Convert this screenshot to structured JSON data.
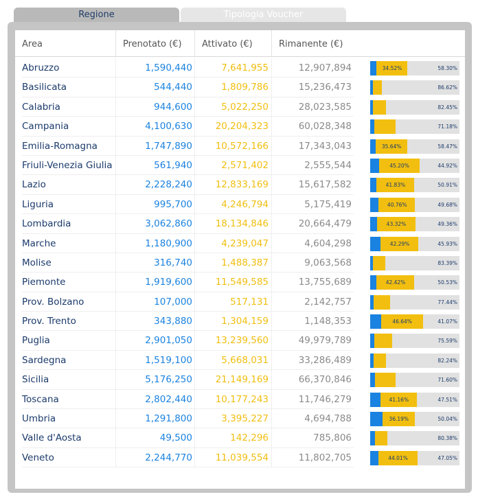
{
  "tabs": [
    {
      "label": "Regione",
      "active": true
    },
    {
      "label": "Tipologia Voucher",
      "active": false
    }
  ],
  "columns": {
    "area": "Area",
    "prenotato": "Prenotato (€)",
    "attivato": "Attivato (€)",
    "rimanente": "Rimanente (€)"
  },
  "colors": {
    "prenotato": "#1a82e0",
    "attivato": "#f2bf10",
    "rimanente": "#e1e1e1"
  },
  "rows": [
    {
      "area": "Abruzzo",
      "prenotato": "1,590,440",
      "attivato": "7,641,955",
      "rimanente": "12,907,894",
      "pren_pct": 7.1,
      "att_pct": 34.52,
      "att_label": "34.52%",
      "rim_pct": 58.3,
      "rim_label": "58.30%"
    },
    {
      "area": "Basilicata",
      "prenotato": "544,440",
      "attivato": "1,809,786",
      "rimanente": "15,236,473",
      "pren_pct": 3.1,
      "att_pct": 10.28,
      "att_label": "",
      "rim_pct": 86.62,
      "rim_label": "86.62%"
    },
    {
      "area": "Calabria",
      "prenotato": "944,600",
      "attivato": "5,022,250",
      "rimanente": "28,023,585",
      "pren_pct": 2.78,
      "att_pct": 14.77,
      "att_label": "",
      "rim_pct": 82.45,
      "rim_label": "82.45%"
    },
    {
      "area": "Campania",
      "prenotato": "4,100,630",
      "attivato": "20,204,323",
      "rimanente": "60,028,348",
      "pren_pct": 4.86,
      "att_pct": 23.96,
      "att_label": "",
      "rim_pct": 71.18,
      "rim_label": "71.18%"
    },
    {
      "area": "Emilia-Romagna",
      "prenotato": "1,747,890",
      "attivato": "10,572,166",
      "rimanente": "17,343,043",
      "pren_pct": 5.89,
      "att_pct": 35.64,
      "att_label": "35.64%",
      "rim_pct": 58.47,
      "rim_label": "58.47%"
    },
    {
      "area": "Friuli-Venezia Giulia",
      "prenotato": "561,940",
      "attivato": "2,571,402",
      "rimanente": "2,555,544",
      "pren_pct": 9.88,
      "att_pct": 45.2,
      "att_label": "45.20%",
      "rim_pct": 44.92,
      "rim_label": "44.92%"
    },
    {
      "area": "Lazio",
      "prenotato": "2,228,240",
      "attivato": "12,833,169",
      "rimanente": "15,617,582",
      "pren_pct": 7.26,
      "att_pct": 41.83,
      "att_label": "41.83%",
      "rim_pct": 50.91,
      "rim_label": "50.91%"
    },
    {
      "area": "Liguria",
      "prenotato": "995,700",
      "attivato": "4,246,794",
      "rimanente": "5,175,419",
      "pren_pct": 9.56,
      "att_pct": 40.76,
      "att_label": "40.76%",
      "rim_pct": 49.68,
      "rim_label": "49.68%"
    },
    {
      "area": "Lombardia",
      "prenotato": "3,062,860",
      "attivato": "18,134,846",
      "rimanente": "20,664,479",
      "pren_pct": 7.32,
      "att_pct": 43.32,
      "att_label": "43.32%",
      "rim_pct": 49.36,
      "rim_label": "49.36%"
    },
    {
      "area": "Marche",
      "prenotato": "1,180,900",
      "attivato": "4,239,047",
      "rimanente": "4,604,298",
      "pren_pct": 11.78,
      "att_pct": 42.29,
      "att_label": "42.29%",
      "rim_pct": 45.93,
      "rim_label": "45.93%"
    },
    {
      "area": "Molise",
      "prenotato": "316,740",
      "attivato": "1,488,387",
      "rimanente": "9,063,568",
      "pren_pct": 2.91,
      "att_pct": 13.7,
      "att_label": "",
      "rim_pct": 83.39,
      "rim_label": "83.39%"
    },
    {
      "area": "Piemonte",
      "prenotato": "1,919,600",
      "attivato": "11,549,585",
      "rimanente": "13,755,689",
      "pren_pct": 7.05,
      "att_pct": 42.42,
      "att_label": "42.42%",
      "rim_pct": 50.53,
      "rim_label": "50.53%"
    },
    {
      "area": "Prov. Bolzano",
      "prenotato": "107,000",
      "attivato": "517,131",
      "rimanente": "2,142,757",
      "pren_pct": 3.87,
      "att_pct": 18.69,
      "att_label": "",
      "rim_pct": 77.44,
      "rim_label": "77.44%"
    },
    {
      "area": "Prov. Trento",
      "prenotato": "343,880",
      "attivato": "1,304,159",
      "rimanente": "1,148,353",
      "pren_pct": 12.3,
      "att_pct": 46.64,
      "att_label": "46.64%",
      "rim_pct": 41.07,
      "rim_label": "41.07%"
    },
    {
      "area": "Puglia",
      "prenotato": "2,901,050",
      "attivato": "13,239,560",
      "rimanente": "49,979,789",
      "pren_pct": 4.39,
      "att_pct": 20.02,
      "att_label": "",
      "rim_pct": 75.59,
      "rim_label": "75.59%"
    },
    {
      "area": "Sardegna",
      "prenotato": "1,519,100",
      "attivato": "5,668,031",
      "rimanente": "33,286,489",
      "pren_pct": 3.75,
      "att_pct": 14.01,
      "att_label": "",
      "rim_pct": 82.24,
      "rim_label": "82.24%"
    },
    {
      "area": "Sicilia",
      "prenotato": "5,176,250",
      "attivato": "21,149,169",
      "rimanente": "66,370,846",
      "pren_pct": 5.58,
      "att_pct": 22.82,
      "att_label": "",
      "rim_pct": 71.6,
      "rim_label": "71.60%"
    },
    {
      "area": "Toscana",
      "prenotato": "2,802,440",
      "attivato": "10,177,243",
      "rimanente": "11,746,279",
      "pren_pct": 11.33,
      "att_pct": 41.16,
      "att_label": "41.16%",
      "rim_pct": 47.51,
      "rim_label": "47.51%"
    },
    {
      "area": "Umbria",
      "prenotato": "1,291,800",
      "attivato": "3,395,227",
      "rimanente": "4,694,788",
      "pren_pct": 13.77,
      "att_pct": 36.19,
      "att_label": "36.19%",
      "rim_pct": 50.04,
      "rim_label": "50.04%"
    },
    {
      "area": "Valle d'Aosta",
      "prenotato": "49,500",
      "attivato": "142,296",
      "rimanente": "785,806",
      "pren_pct": 5.06,
      "att_pct": 14.56,
      "att_label": "",
      "rim_pct": 80.38,
      "rim_label": "80.38%"
    },
    {
      "area": "Veneto",
      "prenotato": "2,244,770",
      "attivato": "11,039,554",
      "rimanente": "11,802,705",
      "pren_pct": 8.94,
      "att_pct": 44.01,
      "att_label": "44.01%",
      "rim_pct": 47.05,
      "rim_label": "47.05%"
    }
  ]
}
